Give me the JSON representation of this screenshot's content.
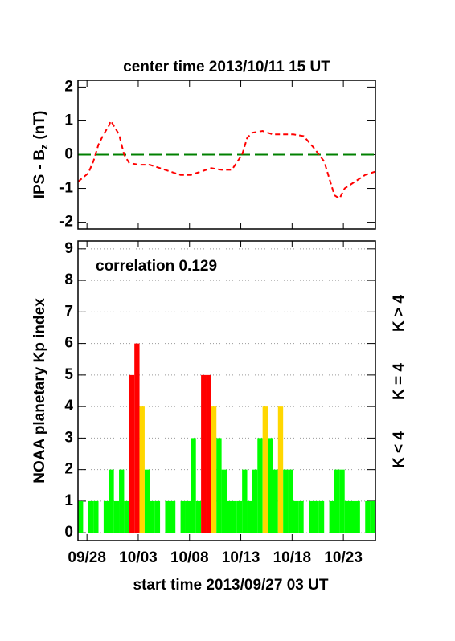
{
  "chart_data": [
    {
      "type": "line",
      "title": "center time 2013/10/11 15 UT",
      "ylabel_parts": [
        "IPS - B",
        "z",
        "(nT)"
      ],
      "xlim": [
        0,
        29
      ],
      "ylim": [
        -2.2,
        2.2
      ],
      "yticks": [
        -2,
        -1,
        0,
        1,
        2
      ],
      "reference_line": {
        "value": 0,
        "color": "#008000"
      },
      "series": [
        {
          "color": "#ff0000",
          "x": [
            0,
            1,
            1.5,
            2,
            2.5,
            3,
            3.2,
            4,
            4.5,
            5,
            6,
            7,
            8,
            9,
            10,
            11,
            12,
            13,
            14,
            15,
            16,
            16.5,
            17,
            18,
            19,
            20,
            21,
            22,
            23,
            24,
            24.5,
            25,
            25.5,
            26,
            27,
            28,
            29
          ],
          "values": [
            -0.8,
            -0.55,
            -0.2,
            0.3,
            0.6,
            0.85,
            1.0,
            0.6,
            0,
            -0.25,
            -0.3,
            -0.3,
            -0.4,
            -0.5,
            -0.6,
            -0.6,
            -0.5,
            -0.4,
            -0.45,
            -0.45,
            0,
            0.5,
            0.65,
            0.7,
            0.6,
            0.6,
            0.6,
            0.55,
            0.2,
            -0.2,
            -0.7,
            -1.2,
            -1.3,
            -1.0,
            -0.8,
            -0.6,
            -0.5
          ]
        }
      ]
    },
    {
      "type": "bar",
      "annotation": "correlation 0.129",
      "xlabel": "start time 2013/09/27 03 UT",
      "ylabel": "NOAA planetary Kp index",
      "xlim": [
        0,
        29
      ],
      "ylim": [
        -0.25,
        9.25
      ],
      "yticks": [
        0,
        1,
        2,
        3,
        4,
        5,
        6,
        7,
        8,
        9
      ],
      "grid": true,
      "xticks": [
        {
          "value": 0.875,
          "label": "09/28"
        },
        {
          "value": 5.875,
          "label": "10/03"
        },
        {
          "value": 10.875,
          "label": "10/08"
        },
        {
          "value": 15.875,
          "label": "10/13"
        },
        {
          "value": 20.875,
          "label": "10/18"
        },
        {
          "value": 25.875,
          "label": "10/23"
        }
      ],
      "bar_width": 0.5,
      "threshold": 4,
      "legend": [
        {
          "label": "K > 4",
          "color": "#ff0000"
        },
        {
          "label": "K = 4",
          "color": "#ffd700"
        },
        {
          "label": "K < 4",
          "color": "#00ff00"
        }
      ],
      "x": [
        0,
        0.5,
        1,
        1.5,
        2,
        2.5,
        3,
        3.5,
        4,
        4.5,
        5,
        5.5,
        6,
        6.5,
        7,
        7.5,
        8,
        8.5,
        9,
        9.5,
        10,
        10.5,
        11,
        11.5,
        12,
        12.5,
        13,
        13.5,
        14,
        14.5,
        15,
        15.5,
        16,
        16.5,
        17,
        17.5,
        18,
        18.5,
        19,
        19.5,
        20,
        20.5,
        21,
        21.5,
        22,
        22.5,
        23,
        23.5,
        24,
        24.5,
        25,
        25.5,
        26,
        26.5,
        27,
        27.5,
        28,
        28.5
      ],
      "values": [
        1,
        0,
        1,
        1,
        0,
        1,
        2,
        1,
        2,
        1,
        5,
        6,
        4,
        2,
        1,
        1,
        0,
        1,
        1,
        0,
        1,
        1,
        3,
        1,
        5,
        5,
        4,
        3,
        2,
        1,
        1,
        1,
        2,
        1,
        2,
        3,
        4,
        3,
        2,
        4,
        2,
        2,
        1,
        1,
        0,
        1,
        1,
        1,
        0,
        1,
        2,
        2,
        1,
        1,
        1,
        0,
        1,
        1
      ]
    }
  ]
}
